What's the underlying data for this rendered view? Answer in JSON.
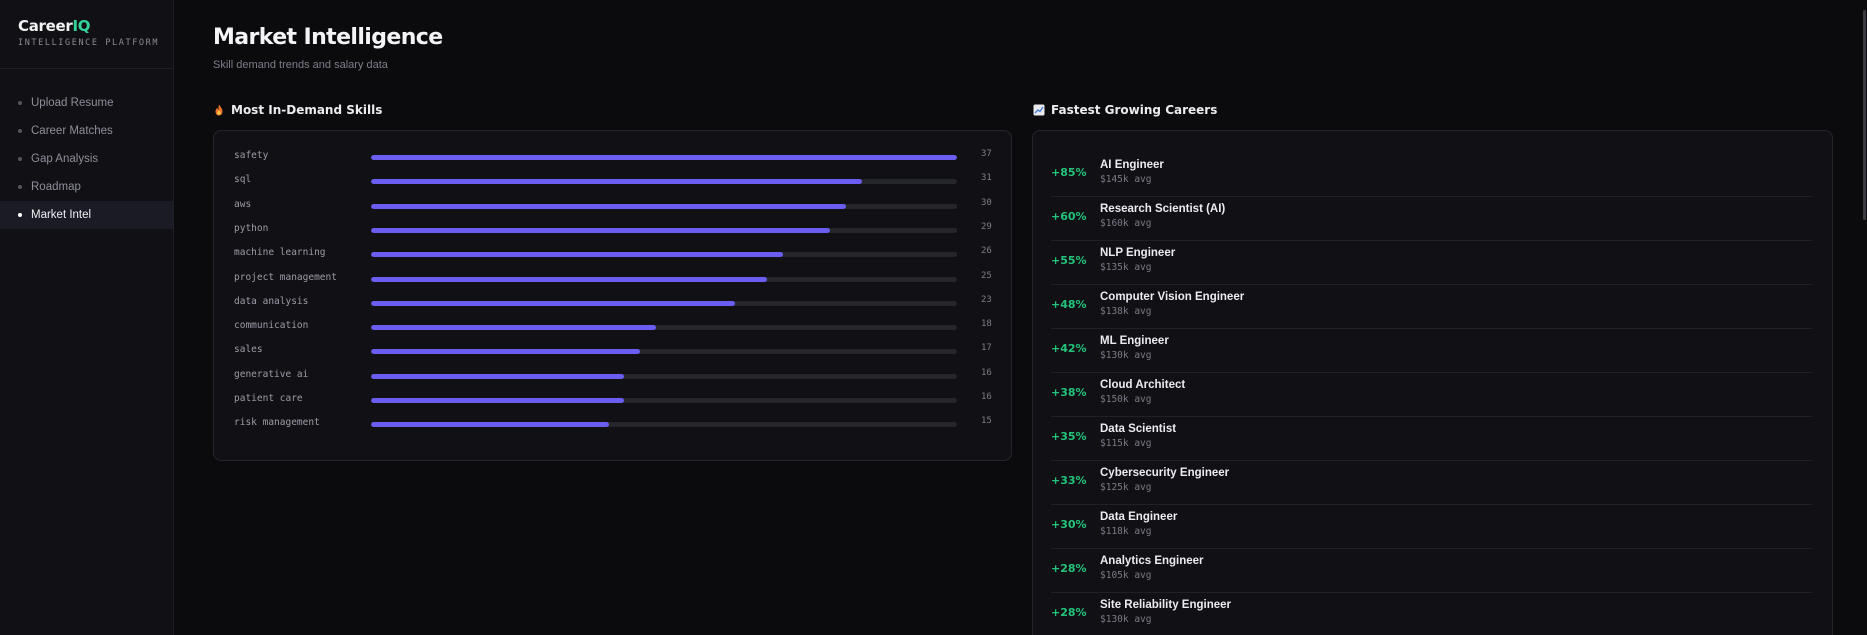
{
  "brand": {
    "logo_main": "Career",
    "logo_accent": "IQ",
    "tagline": "INTELLIGENCE PLATFORM"
  },
  "nav": {
    "items": [
      {
        "label": "Upload Resume"
      },
      {
        "label": "Career Matches"
      },
      {
        "label": "Gap Analysis"
      },
      {
        "label": "Roadmap"
      },
      {
        "label": "Market Intel",
        "active": true
      }
    ]
  },
  "page": {
    "title": "Market Intelligence",
    "subtitle": "Skill demand trends and salary data"
  },
  "skills_section": {
    "title": "Most In-Demand Skills",
    "icon": "fire-icon",
    "max": 37,
    "items": [
      {
        "name": "safety",
        "count": 37
      },
      {
        "name": "sql",
        "count": 31
      },
      {
        "name": "aws",
        "count": 30
      },
      {
        "name": "python",
        "count": 29
      },
      {
        "name": "machine learning",
        "count": 26
      },
      {
        "name": "project management",
        "count": 25
      },
      {
        "name": "data analysis",
        "count": 23
      },
      {
        "name": "communication",
        "count": 18
      },
      {
        "name": "sales",
        "count": 17
      },
      {
        "name": "generative ai",
        "count": 16
      },
      {
        "name": "patient care",
        "count": 16
      },
      {
        "name": "risk management",
        "count": 15
      }
    ]
  },
  "careers_section": {
    "title": "Fastest Growing Careers",
    "icon": "chart-increasing-icon",
    "items": [
      {
        "growth": "+85%",
        "title": "AI Engineer",
        "salary": "$145k avg"
      },
      {
        "growth": "+60%",
        "title": "Research Scientist (AI)",
        "salary": "$160k avg"
      },
      {
        "growth": "+55%",
        "title": "NLP Engineer",
        "salary": "$135k avg"
      },
      {
        "growth": "+48%",
        "title": "Computer Vision Engineer",
        "salary": "$138k avg"
      },
      {
        "growth": "+42%",
        "title": "ML Engineer",
        "salary": "$130k avg"
      },
      {
        "growth": "+38%",
        "title": "Cloud Architect",
        "salary": "$150k avg"
      },
      {
        "growth": "+35%",
        "title": "Data Scientist",
        "salary": "$115k avg"
      },
      {
        "growth": "+33%",
        "title": "Cybersecurity Engineer",
        "salary": "$125k avg"
      },
      {
        "growth": "+30%",
        "title": "Data Engineer",
        "salary": "$118k avg"
      },
      {
        "growth": "+28%",
        "title": "Analytics Engineer",
        "salary": "$105k avg"
      },
      {
        "growth": "+28%",
        "title": "Site Reliability Engineer",
        "salary": "$130k avg"
      }
    ]
  },
  "colors": {
    "accent": "#34d399",
    "bar": "#6a5df0",
    "growth": "#22c37a",
    "background": "#0b0b0e"
  }
}
